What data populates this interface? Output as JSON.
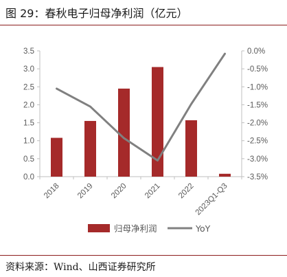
{
  "header": {
    "title": "图 29：春秋电子归母净利润（亿元）"
  },
  "footer": {
    "source": "资料来源：Wind、山西证券研究所"
  },
  "colors": {
    "bar": "#a52a2a",
    "line": "#808080",
    "rule": "#8b1c1c"
  },
  "chart_data": {
    "type": "bar",
    "categories": [
      "2018",
      "2019",
      "2020",
      "2021",
      "2022",
      "2023Q1-Q3"
    ],
    "series": [
      {
        "name": "归母净利润",
        "type": "bar",
        "axis": "left",
        "values": [
          1.08,
          1.55,
          2.45,
          3.05,
          1.57,
          0.08
        ]
      },
      {
        "name": "YoY",
        "type": "line",
        "axis": "right",
        "values": [
          -1.05,
          -1.55,
          -2.43,
          -3.05,
          -1.48,
          -0.08
        ]
      }
    ],
    "y_left": {
      "lim": [
        0,
        3.5
      ],
      "ticks": [
        "0.0",
        "0.5",
        "1.0",
        "1.5",
        "2.0",
        "2.5",
        "3.0",
        "3.5"
      ]
    },
    "y_right": {
      "lim": [
        -3.5,
        0
      ],
      "ticks": [
        "-3.5%",
        "-3.0%",
        "-2.5%",
        "-2.0%",
        "-1.5%",
        "-1.0%",
        "-0.5%",
        "0.0%"
      ]
    },
    "legend": {
      "position": "bottom"
    },
    "grid": false
  }
}
